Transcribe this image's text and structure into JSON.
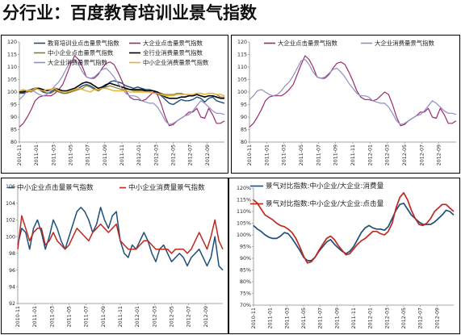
{
  "page": {
    "title": "分行业：百度教育培训业景气指数"
  },
  "dates": [
    "2010-11",
    "2011-01",
    "2011-03",
    "2011-05",
    "2011-07",
    "2011-09",
    "2011-11",
    "2012-01",
    "2012-03",
    "2012-05",
    "2012-07",
    "2012-09"
  ],
  "chart_data": [
    {
      "id": "c1",
      "type": "line",
      "ylim": [
        80,
        120
      ],
      "yticks": [
        80,
        85,
        90,
        95,
        100,
        105,
        110,
        115,
        120
      ],
      "ytick_format": "int",
      "series": [
        {
          "name": "教育培训业点击量景气指数",
          "color": "#1f4e79",
          "width": 1.4,
          "values": [
            99.5,
            99.5,
            100,
            100.5,
            101.5,
            101,
            100,
            99.5,
            100,
            101,
            100.5,
            99.5,
            99.5,
            100,
            101,
            101.5,
            102.5,
            103,
            102.5,
            101.5,
            100.5,
            101.5,
            102.5,
            104,
            104.5,
            104,
            103.5,
            102.5,
            102,
            101.5,
            102,
            101.5,
            101,
            101,
            100.5,
            99.5,
            98.5,
            97,
            95.5,
            95,
            96,
            97,
            96.5,
            96.5,
            97,
            98,
            97.5,
            96,
            97.5,
            98,
            96.5,
            96,
            95.5
          ]
        },
        {
          "name": "大企业点击量景气指数",
          "color": "#9b2a6c",
          "width": 1.2,
          "values": [
            86,
            87.5,
            90,
            93,
            96.5,
            98,
            98.5,
            98.5,
            98.5,
            99.5,
            101,
            103,
            107,
            111,
            114.5,
            113,
            110,
            106,
            105.5,
            105.5,
            107,
            109.5,
            111.5,
            112,
            111,
            108,
            104.5,
            100.5,
            98,
            97,
            97,
            96.5,
            97,
            98.5,
            100,
            99,
            95,
            90,
            86.5,
            87,
            88.5,
            89.5,
            90.5,
            92,
            92,
            93.5,
            90,
            89.5,
            93.5,
            91,
            87.5,
            87.5,
            88.5
          ]
        },
        {
          "name": "中小企业点击量景气指数",
          "color": "#8a7a2a",
          "width": 1.2,
          "values": [
            100,
            100.5,
            100.5,
            100,
            101,
            101.5,
            100.5,
            99.5,
            99.5,
            100.5,
            100,
            99.5,
            99.5,
            100,
            100.5,
            101,
            101.5,
            102.5,
            102,
            101,
            100.5,
            101.5,
            102,
            102.5,
            102,
            101.5,
            101,
            101,
            101,
            100.5,
            100.5,
            100.5,
            100.5,
            100.5,
            100.5,
            100,
            99.5,
            99,
            99,
            99,
            99.5,
            99.5,
            99,
            99,
            99,
            99.5,
            99.5,
            99,
            99.5,
            99.5,
            99,
            98,
            98
          ]
        },
        {
          "name": "全行业消费量景气指数",
          "color": "#000000",
          "width": 1.6,
          "values": [
            100,
            100,
            100.5,
            101,
            101.5,
            101.5,
            101,
            100.5,
            101,
            101.5,
            101,
            100.5,
            100.5,
            101,
            101.5,
            102.5,
            103.5,
            104,
            103.5,
            102.5,
            101.5,
            102,
            103,
            103.5,
            103,
            102.5,
            102,
            101.5,
            101,
            101,
            101,
            101,
            100.5,
            100.5,
            100.5,
            100,
            99,
            98,
            97.5,
            97.5,
            97.5,
            98,
            98,
            98.5,
            98.5,
            99,
            98.5,
            98,
            98.5,
            98.5,
            98,
            97.5,
            97.5
          ]
        },
        {
          "name": "大企业消费量景气指数",
          "color": "#8e8ec2",
          "width": 1.2,
          "values": [
            97,
            98.5,
            100.5,
            101,
            100,
            99,
            98.5,
            99,
            100.5,
            102.5,
            104,
            106.5,
            109.5,
            112.5,
            113,
            111,
            108,
            106,
            105.5,
            106,
            107.5,
            109,
            109.5,
            108,
            106,
            103.5,
            101.5,
            99.5,
            98.5,
            98.5,
            98,
            96.5,
            96,
            95.5,
            95.5,
            94,
            91.5,
            88.5,
            87,
            87.5,
            88.5,
            89.5,
            90.5,
            91,
            92.5,
            94.5,
            96.5,
            95.5,
            94,
            92.5,
            91.5,
            91.5,
            91
          ]
        },
        {
          "name": "中小企业消费量景气指数",
          "color": "#e8b030",
          "width": 1.4,
          "values": [
            100.5,
            101,
            100.5,
            100.5,
            101.5,
            101,
            100.5,
            101,
            101,
            101.5,
            100.5,
            100,
            100,
            100.5,
            101,
            101.5,
            101,
            100.5,
            100,
            101,
            101,
            101.5,
            101.5,
            101,
            100.5,
            100.5,
            100.5,
            100.5,
            100,
            100,
            100,
            100,
            100,
            100,
            99.5,
            99.5,
            99,
            98.5,
            98.5,
            98.5,
            99,
            99,
            99,
            99,
            99,
            99.5,
            99.5,
            99,
            99.5,
            99.5,
            99,
            99,
            98.5
          ]
        }
      ]
    },
    {
      "id": "c2",
      "type": "line",
      "ylim": [
        80,
        120
      ],
      "yticks": [
        80,
        85,
        90,
        95,
        100,
        105,
        110,
        115,
        120
      ],
      "ytick_format": "int",
      "series": [
        {
          "name": "大企业点击量景气指数",
          "color": "#9b2a6c",
          "width": 1.2,
          "values": [
            86,
            87.5,
            90,
            93,
            96.5,
            98,
            98.5,
            98.5,
            98.5,
            99.5,
            101,
            103,
            107,
            111,
            114.5,
            113,
            110,
            106,
            105.5,
            105.5,
            107,
            109.5,
            111.5,
            112,
            111,
            108,
            104.5,
            100.5,
            98,
            97,
            97,
            96.5,
            97,
            98.5,
            100,
            99,
            95,
            90,
            86.5,
            87,
            88.5,
            89.5,
            90.5,
            92,
            92,
            93.5,
            90,
            89.5,
            93.5,
            91,
            87.5,
            87.5,
            88.5
          ]
        },
        {
          "name": "大企业消费量景气指数",
          "color": "#8e8ec2",
          "width": 1.2,
          "values": [
            97,
            98.5,
            100.5,
            101,
            100,
            99,
            98.5,
            99,
            100.5,
            102.5,
            104,
            106.5,
            109.5,
            112.5,
            113,
            111,
            108,
            106,
            105.5,
            106,
            107.5,
            109,
            109.5,
            108,
            106,
            103.5,
            101.5,
            99.5,
            98.5,
            98.5,
            98,
            96.5,
            96,
            95.5,
            95.5,
            94,
            91.5,
            88.5,
            87,
            87.5,
            88.5,
            89.5,
            90.5,
            91,
            92.5,
            94.5,
            96.5,
            95.5,
            94,
            92.5,
            91.5,
            91.5,
            91
          ]
        }
      ]
    },
    {
      "id": "c3",
      "type": "line",
      "ylim": [
        92,
        106
      ],
      "yticks": [
        92,
        94,
        96,
        98,
        100,
        102,
        104,
        106
      ],
      "ytick_format": "int",
      "series": [
        {
          "name": "中小企业点击量景气指数",
          "color": "#1f4e79",
          "width": 1.5,
          "values": [
            99,
            101,
            100.5,
            98.5,
            101,
            102,
            100.5,
            98.5,
            100,
            102,
            101,
            99.5,
            98.5,
            100,
            101.5,
            103,
            103.5,
            103,
            102,
            100.5,
            101.5,
            103.5,
            102,
            101,
            102.5,
            103,
            99.5,
            98,
            97.5,
            99,
            98.5,
            99.5,
            100.5,
            99.5,
            98,
            97,
            98.5,
            99,
            98,
            97,
            97.5,
            98,
            97.5,
            96.5,
            97.5,
            98,
            98.5,
            97.5,
            96.5,
            97.5,
            100,
            96.5,
            96
          ]
        },
        {
          "name": "中小企业消费量景气指数",
          "color": "#c0281e",
          "width": 1.5,
          "values": [
            98.5,
            102.5,
            101,
            99.5,
            100.5,
            101,
            101,
            99,
            99.5,
            100.5,
            99.5,
            99,
            98.5,
            99,
            100,
            101,
            100.5,
            100,
            99.5,
            100.5,
            101,
            101.5,
            101,
            100.5,
            101,
            101.5,
            99.5,
            99,
            98.5,
            98.5,
            98.5,
            99,
            99.5,
            99.5,
            99,
            98.5,
            98.5,
            98.5,
            98.5,
            98,
            98.5,
            98.5,
            98.5,
            98,
            98.5,
            99.5,
            100.5,
            99.5,
            98.5,
            100,
            102,
            99.5,
            98.5
          ]
        }
      ]
    },
    {
      "id": "c4",
      "type": "line",
      "ylim": [
        70,
        120
      ],
      "yticks": [
        70,
        75,
        80,
        85,
        90,
        95,
        100,
        105,
        110,
        115,
        120
      ],
      "ytick_format": "pct",
      "series": [
        {
          "name": "景气对比指数:中小企业/大企业:消费量",
          "color": "#1f4e79",
          "width": 1.7,
          "values": [
            104,
            102.5,
            101.5,
            100,
            99,
            98.5,
            98.5,
            99.5,
            101,
            100.5,
            98.5,
            96,
            93.5,
            90.5,
            89,
            89,
            90.5,
            93,
            95,
            97,
            98,
            96,
            94.5,
            93,
            92,
            93,
            95,
            98,
            101,
            103,
            104,
            103,
            102.5,
            102.5,
            102,
            103.5,
            107,
            110.5,
            113,
            113.5,
            111,
            108.5,
            107,
            105.5,
            104.5,
            104.5,
            104.5,
            105.5,
            107,
            108.5,
            110.5,
            110,
            108.5
          ]
        },
        {
          "name": "景气对比指数:中小企业/大企业:点击量",
          "color": "#c0281e",
          "width": 1.7,
          "values": [
            115,
            113.5,
            111,
            108.5,
            107.5,
            106.5,
            105,
            104,
            103.5,
            102.5,
            101,
            98.5,
            95,
            91,
            88,
            88.5,
            90.5,
            93.5,
            96,
            98.5,
            99.5,
            98,
            95.5,
            93.5,
            91.5,
            92,
            94,
            96,
            97.5,
            98.5,
            100,
            101.5,
            101.5,
            100.5,
            100,
            101.5,
            105,
            111.5,
            116,
            118,
            115,
            110.5,
            107,
            104.5,
            104,
            105,
            107,
            110,
            111.5,
            113,
            113,
            111.5,
            110
          ]
        }
      ]
    }
  ]
}
